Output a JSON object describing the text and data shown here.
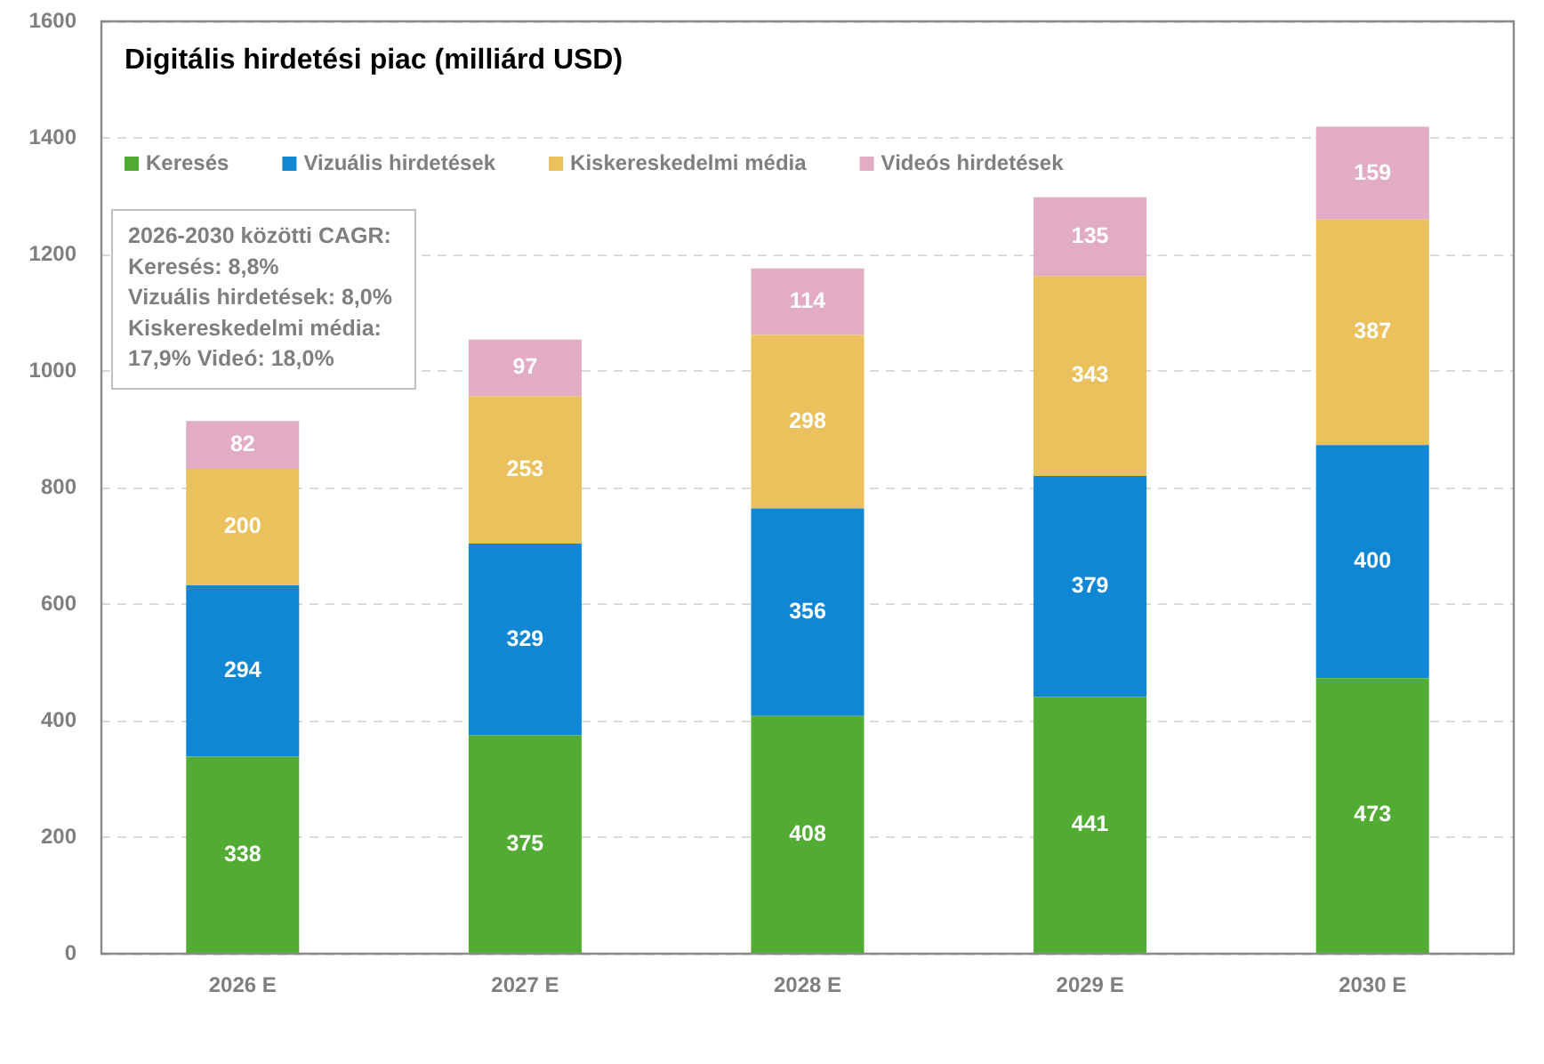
{
  "chart_data": {
    "type": "bar",
    "title": "Digitális hirdetési piac (milliárd USD)",
    "categories": [
      "2026 E",
      "2027 E",
      "2028 E",
      "2029 E",
      "2030 E"
    ],
    "series": [
      {
        "name": "Keresés",
        "color": "#52ac33",
        "values": [
          338,
          375,
          408,
          441,
          473
        ]
      },
      {
        "name": "Vizuális hirdetések",
        "color": "#1087d4",
        "values": [
          294,
          329,
          356,
          379,
          400
        ]
      },
      {
        "name": "Kiskereskedelmi média",
        "color": "#eac15c",
        "values": [
          200,
          253,
          298,
          343,
          387
        ]
      },
      {
        "name": "Videós hirdetések",
        "color": "#e2acc4",
        "values": [
          82,
          97,
          114,
          135,
          159
        ]
      }
    ],
    "stacked": true,
    "ylim": [
      0,
      1600
    ],
    "yticks": [
      0,
      200,
      400,
      600,
      800,
      1000,
      1200,
      1400,
      1600
    ],
    "grid": "y",
    "legend": "top",
    "data_labels": true,
    "annotations": [
      "2026-2030 közötti CAGR:\nKeresés: 8,8%\nVizuális hirdetések: 8,0%\nKiskereskedelmi média:\n17,9% Videó: 18,0%"
    ]
  }
}
